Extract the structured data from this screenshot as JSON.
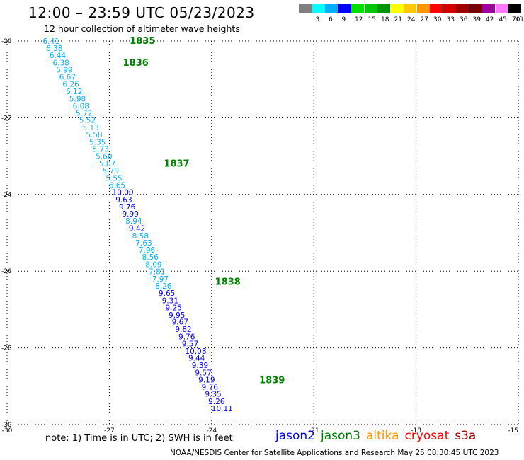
{
  "header": {
    "title": "12:00 – 23:59 UTC 05/23/2023",
    "subtitle": "12 hour collection of altimeter wave heights"
  },
  "color_scale": {
    "unit": "(ft)",
    "items": [
      {
        "label": "",
        "color": "#808080"
      },
      {
        "label": "3",
        "color": "#00ffff"
      },
      {
        "label": "6",
        "color": "#00b0ff"
      },
      {
        "label": "9",
        "color": "#0000ff"
      },
      {
        "label": "12",
        "color": "#00e000"
      },
      {
        "label": "15",
        "color": "#00c800"
      },
      {
        "label": "18",
        "color": "#009600"
      },
      {
        "label": "21",
        "color": "#ffff00"
      },
      {
        "label": "24",
        "color": "#ffc800"
      },
      {
        "label": "27",
        "color": "#ff9600"
      },
      {
        "label": "30",
        "color": "#ff0000"
      },
      {
        "label": "33",
        "color": "#d40000"
      },
      {
        "label": "36",
        "color": "#a00000"
      },
      {
        "label": "39",
        "color": "#780000"
      },
      {
        "label": "42",
        "color": "#a000a0"
      },
      {
        "label": "45",
        "color": "#ff78ff"
      },
      {
        "label": "70",
        "color": "#000000"
      }
    ]
  },
  "map": {
    "lat_labels": [
      "-20",
      "-22",
      "-24",
      "-26",
      "-28",
      "-30"
    ],
    "lon_labels": [
      "-30",
      "-27",
      "-24",
      "-21",
      "-18",
      "-15"
    ],
    "lat_range": [
      -30,
      -20
    ],
    "lon_range": [
      -30,
      -15
    ],
    "observations": [
      {
        "lat": -20.0,
        "value": "6.41",
        "color": "#00b0ff"
      },
      {
        "lat": -20.18,
        "value": "6.38",
        "color": "#00b0ff"
      },
      {
        "lat": -20.37,
        "value": "6.44",
        "color": "#00b0ff"
      },
      {
        "lat": -20.56,
        "value": "6.38",
        "color": "#00b0ff"
      },
      {
        "lat": -20.75,
        "value": "5.99",
        "color": "#00b0ff"
      },
      {
        "lat": -20.93,
        "value": "6.67",
        "color": "#00b0ff"
      },
      {
        "lat": -21.12,
        "value": "6.26",
        "color": "#00b0ff"
      },
      {
        "lat": -21.31,
        "value": "6.12",
        "color": "#00b0ff"
      },
      {
        "lat": -21.5,
        "value": "5.98",
        "color": "#00b0ff"
      },
      {
        "lat": -21.69,
        "value": "6.08",
        "color": "#00b0ff"
      },
      {
        "lat": -21.87,
        "value": "5.72",
        "color": "#00b0ff"
      },
      {
        "lat": -22.06,
        "value": "5.52",
        "color": "#00b0ff"
      },
      {
        "lat": -22.25,
        "value": "5.13",
        "color": "#00b0ff"
      },
      {
        "lat": -22.44,
        "value": "5.58",
        "color": "#00b0ff"
      },
      {
        "lat": -22.63,
        "value": "5.35",
        "color": "#00b0ff"
      },
      {
        "lat": -22.81,
        "value": "5.73",
        "color": "#00b0ff"
      },
      {
        "lat": -23.0,
        "value": "5.60",
        "color": "#00b0ff"
      },
      {
        "lat": -23.19,
        "value": "5.07",
        "color": "#00b0ff"
      },
      {
        "lat": -23.38,
        "value": "5.79",
        "color": "#00b0ff"
      },
      {
        "lat": -23.57,
        "value": "5.55",
        "color": "#00b0ff"
      },
      {
        "lat": -23.75,
        "value": "6.65",
        "color": "#00b0ff"
      },
      {
        "lat": -23.94,
        "value": "10.00",
        "color": "#0000ff"
      },
      {
        "lat": -24.13,
        "value": "9.63",
        "color": "#0000ff"
      },
      {
        "lat": -24.32,
        "value": "9.76",
        "color": "#0000ff"
      },
      {
        "lat": -24.5,
        "value": "9.99",
        "color": "#0000ff"
      },
      {
        "lat": -24.69,
        "value": "8.94",
        "color": "#00b0ff"
      },
      {
        "lat": -24.88,
        "value": "9.42",
        "color": "#0000ff"
      },
      {
        "lat": -25.07,
        "value": "8.58",
        "color": "#00b0ff"
      },
      {
        "lat": -25.26,
        "value": "7.63",
        "color": "#00b0ff"
      },
      {
        "lat": -25.44,
        "value": "7.96",
        "color": "#00b0ff"
      },
      {
        "lat": -25.63,
        "value": "8.56",
        "color": "#00b0ff"
      },
      {
        "lat": -25.82,
        "value": "8.09",
        "color": "#00b0ff"
      },
      {
        "lat": -26.01,
        "value": "7.81",
        "color": "#00b0ff"
      },
      {
        "lat": -26.2,
        "value": "7.97",
        "color": "#00b0ff"
      },
      {
        "lat": -26.38,
        "value": "8.26",
        "color": "#00b0ff"
      },
      {
        "lat": -26.57,
        "value": "9.65",
        "color": "#0000ff"
      },
      {
        "lat": -26.76,
        "value": "9.31",
        "color": "#0000ff"
      },
      {
        "lat": -26.95,
        "value": "9.25",
        "color": "#0000ff"
      },
      {
        "lat": -27.14,
        "value": "9.95",
        "color": "#0000ff"
      },
      {
        "lat": -27.32,
        "value": "9.67",
        "color": "#0000ff"
      },
      {
        "lat": -27.51,
        "value": "9.82",
        "color": "#0000ff"
      },
      {
        "lat": -27.7,
        "value": "9.76",
        "color": "#0000ff"
      },
      {
        "lat": -27.89,
        "value": "9.57",
        "color": "#0000ff"
      },
      {
        "lat": -28.08,
        "value": "10.08",
        "color": "#0000ff"
      },
      {
        "lat": -28.26,
        "value": "9.44",
        "color": "#0000ff"
      },
      {
        "lat": -28.45,
        "value": "9.39",
        "color": "#0000ff"
      },
      {
        "lat": -28.64,
        "value": "9.57",
        "color": "#0000ff"
      },
      {
        "lat": -28.83,
        "value": "9.19",
        "color": "#0000ff"
      },
      {
        "lat": -29.01,
        "value": "9.76",
        "color": "#0000ff"
      },
      {
        "lat": -29.2,
        "value": "9.35",
        "color": "#0000ff"
      },
      {
        "lat": -29.39,
        "value": "9.26",
        "color": "#0000ff"
      },
      {
        "lat": -29.58,
        "value": "10.11",
        "color": "#0000ff"
      }
    ],
    "pass_labels": [
      {
        "lat": -19.98,
        "lon": -26.4,
        "text": "1835"
      },
      {
        "lat": -20.55,
        "lon": -26.6,
        "text": "1836"
      },
      {
        "lat": -23.18,
        "lon": -25.4,
        "text": "1837"
      },
      {
        "lat": -26.26,
        "lon": -23.9,
        "text": "1838"
      },
      {
        "lat": -28.83,
        "lon": -22.6,
        "text": "1839"
      }
    ]
  },
  "footer": {
    "note": "note:  1) Time is in UTC;  2) SWH is in feet",
    "satellites": [
      {
        "name": "jason2",
        "color": "#0000ff"
      },
      {
        "name": "jason3",
        "color": "#008000"
      },
      {
        "name": "altika",
        "color": "#ff9600"
      },
      {
        "name": "cryosat",
        "color": "#ff0000"
      },
      {
        "name": "s3a",
        "color": "#a00000"
      }
    ],
    "credit": "NOAA/NESDIS Center for Satellite Applications and Research    May 25 08:30:45 UTC 2023"
  }
}
